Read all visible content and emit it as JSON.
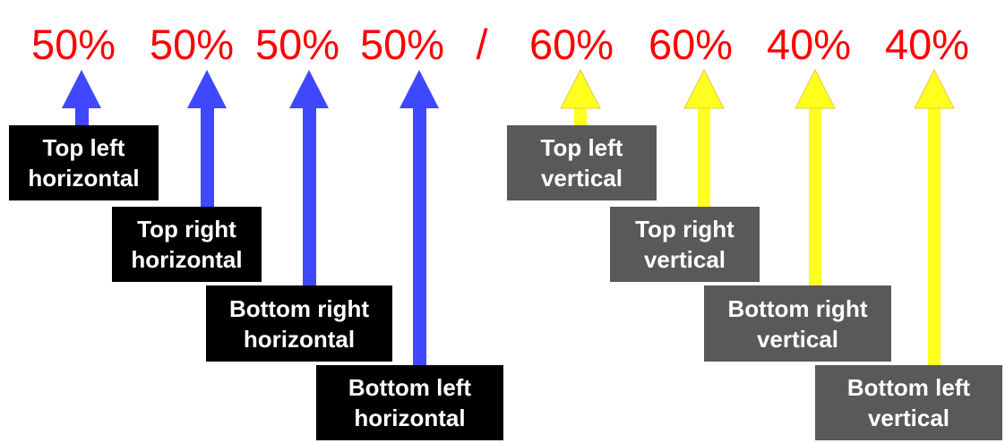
{
  "values": [
    "50%",
    "50%",
    "50%",
    "50%",
    "/",
    "60%",
    "60%",
    "40%",
    "40%"
  ],
  "labels": [
    {
      "line1": "Top left",
      "line2": "horizontal"
    },
    {
      "line1": "Top right",
      "line2": "horizontal"
    },
    {
      "line1": "Bottom right",
      "line2": "horizontal"
    },
    {
      "line1": "Bottom left",
      "line2": "horizontal"
    },
    {
      "line1": "Top left",
      "line2": "vertical"
    },
    {
      "line1": "Top right",
      "line2": "vertical"
    },
    {
      "line1": "Bottom right",
      "line2": "vertical"
    },
    {
      "line1": "Bottom left",
      "line2": "vertical"
    }
  ],
  "colors": {
    "value_text": "#ff0000",
    "horizontal_arrow": "#3f48ff",
    "vertical_arrow": "#ffff1e",
    "horizontal_label_bg": "#000000",
    "vertical_label_bg": "#595959"
  }
}
